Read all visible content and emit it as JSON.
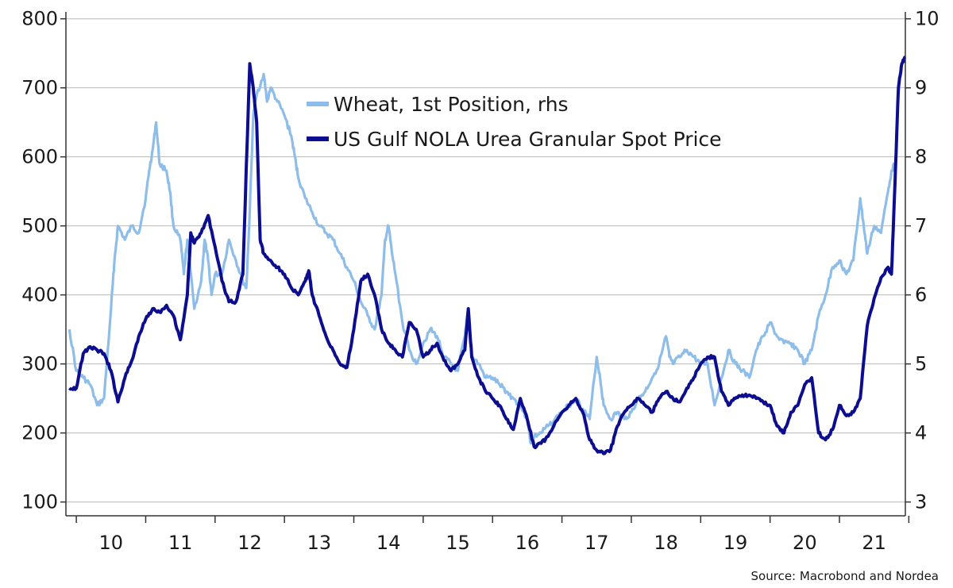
{
  "chart_data": {
    "type": "line",
    "x_tick_labels": [
      "10",
      "11",
      "12",
      "13",
      "14",
      "15",
      "16",
      "17",
      "18",
      "19",
      "20",
      "21"
    ],
    "x_range": [
      2009.85,
      2021.95
    ],
    "y_left": {
      "range": [
        80,
        810
      ],
      "ticks": [
        100,
        200,
        300,
        400,
        500,
        600,
        700,
        800
      ]
    },
    "y_right": {
      "range": [
        2.8,
        10.1
      ],
      "ticks": [
        3,
        4,
        5,
        6,
        7,
        8,
        9,
        10
      ]
    },
    "grid": true,
    "legend_position": "top-center",
    "series": [
      {
        "name": "Wheat, 1st Position, rhs",
        "axis": "right",
        "color": "#8dbde8",
        "points": [
          [
            2009.9,
            5.5
          ],
          [
            2010.0,
            4.9
          ],
          [
            2010.1,
            4.8
          ],
          [
            2010.2,
            4.7
          ],
          [
            2010.3,
            4.4
          ],
          [
            2010.4,
            4.5
          ],
          [
            2010.5,
            5.8
          ],
          [
            2010.55,
            6.5
          ],
          [
            2010.6,
            7.0
          ],
          [
            2010.7,
            6.8
          ],
          [
            2010.8,
            7.0
          ],
          [
            2010.9,
            6.9
          ],
          [
            2011.0,
            7.4
          ],
          [
            2011.05,
            7.8
          ],
          [
            2011.1,
            8.1
          ],
          [
            2011.15,
            8.5
          ],
          [
            2011.2,
            7.9
          ],
          [
            2011.3,
            7.8
          ],
          [
            2011.35,
            7.5
          ],
          [
            2011.4,
            7.0
          ],
          [
            2011.5,
            6.8
          ],
          [
            2011.55,
            6.3
          ],
          [
            2011.6,
            6.8
          ],
          [
            2011.7,
            5.8
          ],
          [
            2011.8,
            6.2
          ],
          [
            2011.85,
            6.8
          ],
          [
            2011.9,
            6.5
          ],
          [
            2011.95,
            6.0
          ],
          [
            2012.0,
            6.3
          ],
          [
            2012.1,
            6.3
          ],
          [
            2012.2,
            6.8
          ],
          [
            2012.3,
            6.5
          ],
          [
            2012.4,
            6.2
          ],
          [
            2012.45,
            6.1
          ],
          [
            2012.5,
            7.2
          ],
          [
            2012.55,
            8.6
          ],
          [
            2012.6,
            8.9
          ],
          [
            2012.7,
            9.2
          ],
          [
            2012.75,
            8.8
          ],
          [
            2012.8,
            9.0
          ],
          [
            2012.9,
            8.8
          ],
          [
            2013.0,
            8.6
          ],
          [
            2013.1,
            8.3
          ],
          [
            2013.15,
            8.0
          ],
          [
            2013.2,
            7.7
          ],
          [
            2013.3,
            7.4
          ],
          [
            2013.4,
            7.2
          ],
          [
            2013.5,
            7.0
          ],
          [
            2013.6,
            6.9
          ],
          [
            2013.7,
            6.8
          ],
          [
            2013.8,
            6.6
          ],
          [
            2013.9,
            6.4
          ],
          [
            2014.0,
            6.2
          ],
          [
            2014.1,
            5.9
          ],
          [
            2014.2,
            5.7
          ],
          [
            2014.3,
            5.5
          ],
          [
            2014.4,
            6.0
          ],
          [
            2014.45,
            6.8
          ],
          [
            2014.5,
            7.0
          ],
          [
            2014.55,
            6.6
          ],
          [
            2014.6,
            6.3
          ],
          [
            2014.7,
            5.6
          ],
          [
            2014.8,
            5.2
          ],
          [
            2014.9,
            5.0
          ],
          [
            2015.0,
            5.3
          ],
          [
            2015.1,
            5.5
          ],
          [
            2015.2,
            5.4
          ],
          [
            2015.3,
            5.1
          ],
          [
            2015.4,
            5.0
          ],
          [
            2015.5,
            4.9
          ],
          [
            2015.6,
            5.4
          ],
          [
            2015.65,
            5.8
          ],
          [
            2015.7,
            5.1
          ],
          [
            2015.8,
            5.0
          ],
          [
            2015.9,
            4.8
          ],
          [
            2016.0,
            4.8
          ],
          [
            2016.1,
            4.7
          ],
          [
            2016.2,
            4.6
          ],
          [
            2016.3,
            4.5
          ],
          [
            2016.4,
            4.4
          ],
          [
            2016.5,
            4.2
          ],
          [
            2016.55,
            3.85
          ],
          [
            2016.6,
            3.95
          ],
          [
            2016.7,
            4.0
          ],
          [
            2016.8,
            4.1
          ],
          [
            2016.9,
            4.2
          ],
          [
            2017.0,
            4.3
          ],
          [
            2017.1,
            4.4
          ],
          [
            2017.2,
            4.5
          ],
          [
            2017.3,
            4.35
          ],
          [
            2017.4,
            4.2
          ],
          [
            2017.5,
            5.1
          ],
          [
            2017.55,
            4.8
          ],
          [
            2017.6,
            4.4
          ],
          [
            2017.7,
            4.2
          ],
          [
            2017.8,
            4.3
          ],
          [
            2017.9,
            4.2
          ],
          [
            2018.0,
            4.3
          ],
          [
            2018.1,
            4.5
          ],
          [
            2018.2,
            4.6
          ],
          [
            2018.3,
            4.8
          ],
          [
            2018.4,
            5.0
          ],
          [
            2018.5,
            5.4
          ],
          [
            2018.55,
            5.1
          ],
          [
            2018.6,
            5.0
          ],
          [
            2018.7,
            5.1
          ],
          [
            2018.8,
            5.2
          ],
          [
            2018.9,
            5.1
          ],
          [
            2019.0,
            5.0
          ],
          [
            2019.1,
            5.0
          ],
          [
            2019.2,
            4.4
          ],
          [
            2019.3,
            4.8
          ],
          [
            2019.4,
            5.2
          ],
          [
            2019.5,
            5.0
          ],
          [
            2019.6,
            4.9
          ],
          [
            2019.7,
            4.8
          ],
          [
            2019.8,
            5.2
          ],
          [
            2019.9,
            5.4
          ],
          [
            2020.0,
            5.6
          ],
          [
            2020.1,
            5.4
          ],
          [
            2020.2,
            5.3
          ],
          [
            2020.3,
            5.3
          ],
          [
            2020.4,
            5.2
          ],
          [
            2020.5,
            5.0
          ],
          [
            2020.6,
            5.2
          ],
          [
            2020.7,
            5.7
          ],
          [
            2020.8,
            6.0
          ],
          [
            2020.9,
            6.4
          ],
          [
            2021.0,
            6.5
          ],
          [
            2021.1,
            6.3
          ],
          [
            2021.2,
            6.5
          ],
          [
            2021.3,
            7.4
          ],
          [
            2021.35,
            7.0
          ],
          [
            2021.4,
            6.6
          ],
          [
            2021.5,
            7.0
          ],
          [
            2021.6,
            6.9
          ],
          [
            2021.7,
            7.5
          ],
          [
            2021.75,
            7.8
          ],
          [
            2021.8,
            7.9
          ]
        ]
      },
      {
        "name": "US Gulf NOLA Urea Granular Spot Price",
        "axis": "left",
        "color": "#0d0d8f",
        "points": [
          [
            2009.9,
            265
          ],
          [
            2010.0,
            265
          ],
          [
            2010.1,
            315
          ],
          [
            2010.2,
            325
          ],
          [
            2010.3,
            320
          ],
          [
            2010.4,
            315
          ],
          [
            2010.5,
            290
          ],
          [
            2010.6,
            245
          ],
          [
            2010.7,
            280
          ],
          [
            2010.8,
            305
          ],
          [
            2010.9,
            340
          ],
          [
            2011.0,
            365
          ],
          [
            2011.1,
            380
          ],
          [
            2011.2,
            375
          ],
          [
            2011.3,
            385
          ],
          [
            2011.4,
            370
          ],
          [
            2011.5,
            335
          ],
          [
            2011.6,
            400
          ],
          [
            2011.65,
            490
          ],
          [
            2011.7,
            475
          ],
          [
            2011.8,
            490
          ],
          [
            2011.9,
            515
          ],
          [
            2012.0,
            470
          ],
          [
            2012.1,
            420
          ],
          [
            2012.2,
            390
          ],
          [
            2012.3,
            390
          ],
          [
            2012.4,
            430
          ],
          [
            2012.5,
            735
          ],
          [
            2012.55,
            700
          ],
          [
            2012.6,
            650
          ],
          [
            2012.65,
            480
          ],
          [
            2012.7,
            460
          ],
          [
            2012.8,
            450
          ],
          [
            2012.9,
            440
          ],
          [
            2013.0,
            430
          ],
          [
            2013.1,
            410
          ],
          [
            2013.2,
            400
          ],
          [
            2013.3,
            420
          ],
          [
            2013.35,
            435
          ],
          [
            2013.4,
            400
          ],
          [
            2013.5,
            370
          ],
          [
            2013.6,
            340
          ],
          [
            2013.7,
            320
          ],
          [
            2013.8,
            300
          ],
          [
            2013.9,
            295
          ],
          [
            2014.0,
            350
          ],
          [
            2014.1,
            420
          ],
          [
            2014.2,
            430
          ],
          [
            2014.3,
            400
          ],
          [
            2014.4,
            350
          ],
          [
            2014.5,
            330
          ],
          [
            2014.6,
            320
          ],
          [
            2014.7,
            310
          ],
          [
            2014.8,
            360
          ],
          [
            2014.9,
            350
          ],
          [
            2015.0,
            310
          ],
          [
            2015.1,
            320
          ],
          [
            2015.2,
            330
          ],
          [
            2015.3,
            305
          ],
          [
            2015.4,
            290
          ],
          [
            2015.5,
            300
          ],
          [
            2015.6,
            320
          ],
          [
            2015.65,
            380
          ],
          [
            2015.7,
            310
          ],
          [
            2015.8,
            280
          ],
          [
            2015.9,
            260
          ],
          [
            2016.0,
            250
          ],
          [
            2016.1,
            240
          ],
          [
            2016.2,
            220
          ],
          [
            2016.3,
            205
          ],
          [
            2016.4,
            250
          ],
          [
            2016.5,
            220
          ],
          [
            2016.6,
            180
          ],
          [
            2016.7,
            185
          ],
          [
            2016.8,
            195
          ],
          [
            2016.9,
            215
          ],
          [
            2017.0,
            230
          ],
          [
            2017.1,
            240
          ],
          [
            2017.2,
            250
          ],
          [
            2017.3,
            230
          ],
          [
            2017.4,
            190
          ],
          [
            2017.5,
            175
          ],
          [
            2017.6,
            170
          ],
          [
            2017.7,
            175
          ],
          [
            2017.8,
            210
          ],
          [
            2017.9,
            230
          ],
          [
            2018.0,
            240
          ],
          [
            2018.1,
            250
          ],
          [
            2018.2,
            240
          ],
          [
            2018.3,
            230
          ],
          [
            2018.4,
            250
          ],
          [
            2018.5,
            260
          ],
          [
            2018.6,
            250
          ],
          [
            2018.7,
            245
          ],
          [
            2018.8,
            265
          ],
          [
            2018.9,
            280
          ],
          [
            2019.0,
            300
          ],
          [
            2019.1,
            310
          ],
          [
            2019.2,
            310
          ],
          [
            2019.3,
            260
          ],
          [
            2019.4,
            240
          ],
          [
            2019.5,
            250
          ],
          [
            2019.6,
            255
          ],
          [
            2019.7,
            255
          ],
          [
            2019.8,
            250
          ],
          [
            2019.9,
            245
          ],
          [
            2020.0,
            240
          ],
          [
            2020.1,
            210
          ],
          [
            2020.2,
            200
          ],
          [
            2020.3,
            230
          ],
          [
            2020.4,
            240
          ],
          [
            2020.5,
            270
          ],
          [
            2020.6,
            280
          ],
          [
            2020.7,
            200
          ],
          [
            2020.8,
            190
          ],
          [
            2020.9,
            205
          ],
          [
            2021.0,
            240
          ],
          [
            2021.1,
            225
          ],
          [
            2021.2,
            230
          ],
          [
            2021.3,
            250
          ],
          [
            2021.4,
            355
          ],
          [
            2021.5,
            395
          ],
          [
            2021.6,
            425
          ],
          [
            2021.7,
            440
          ],
          [
            2021.75,
            430
          ],
          [
            2021.8,
            560
          ],
          [
            2021.85,
            700
          ],
          [
            2021.9,
            735
          ],
          [
            2021.95,
            745
          ]
        ]
      }
    ]
  },
  "source": "Source: Macrobond and Nordea"
}
